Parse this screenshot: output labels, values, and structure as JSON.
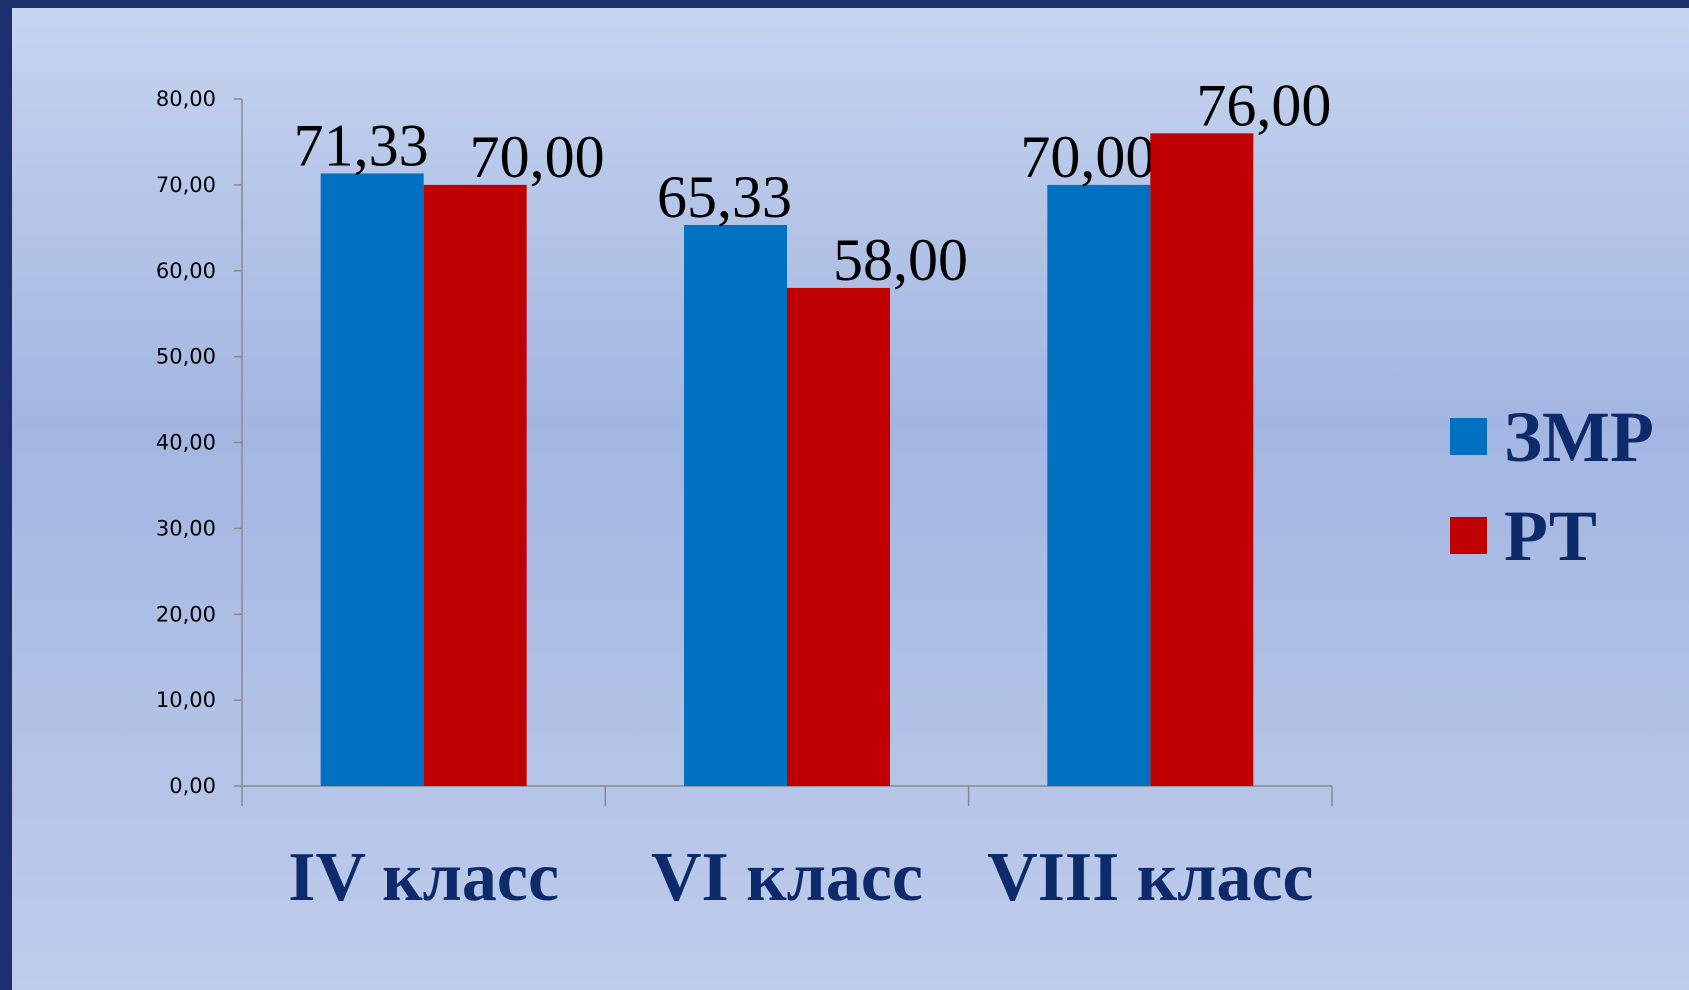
{
  "chart_data": {
    "type": "bar",
    "categories": [
      "IV класс",
      "VI класс",
      "VIII класс"
    ],
    "series": [
      {
        "name": "ЗМР",
        "color": "#0070c0",
        "values": [
          71.33,
          65.33,
          70.0
        ],
        "value_labels": [
          "71,33",
          "65,33",
          "70,00"
        ]
      },
      {
        "name": "РТ",
        "color": "#c00000",
        "values": [
          70.0,
          58.0,
          76.0
        ],
        "value_labels": [
          "70,00",
          "58,00",
          "76,00"
        ]
      }
    ],
    "ylim": [
      0,
      80
    ],
    "yticks": [
      {
        "value": 0,
        "label": "0,00"
      },
      {
        "value": 10,
        "label": "10,00"
      },
      {
        "value": 20,
        "label": "20,00"
      },
      {
        "value": 30,
        "label": "30,00"
      },
      {
        "value": 40,
        "label": "40,00"
      },
      {
        "value": 50,
        "label": "50,00"
      },
      {
        "value": 60,
        "label": "60,00"
      },
      {
        "value": 70,
        "label": "70,00"
      },
      {
        "value": 80,
        "label": "80,00"
      }
    ],
    "legend": "right"
  }
}
